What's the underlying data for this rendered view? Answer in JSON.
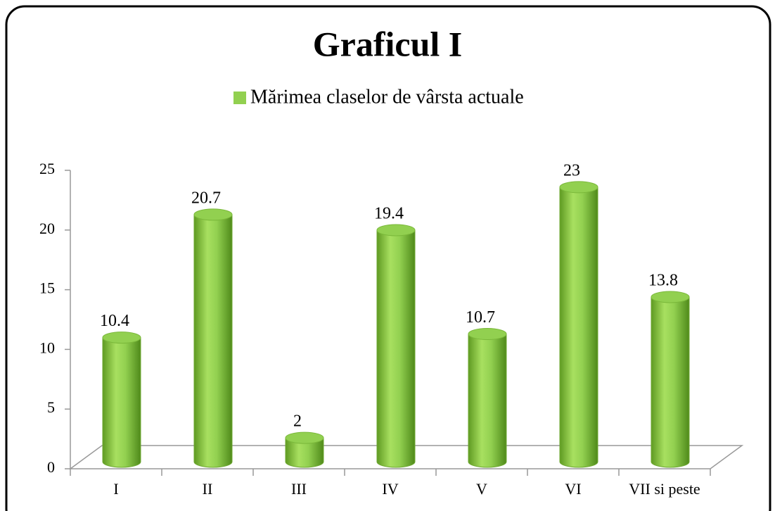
{
  "chart_data": {
    "type": "bar",
    "title": "Graficul I",
    "categories": [
      "I",
      "II",
      "III",
      "IV",
      "V",
      "VI",
      "VII si peste"
    ],
    "series": [
      {
        "name": "Mărimea claselor de vârsta actuale",
        "color": "#92d050",
        "values": [
          10.4,
          20.7,
          2,
          19.4,
          10.7,
          23,
          13.8
        ]
      }
    ],
    "ylim": [
      0,
      25
    ],
    "yticks": [
      0,
      5,
      10,
      15,
      20,
      25
    ],
    "legend": "top"
  }
}
